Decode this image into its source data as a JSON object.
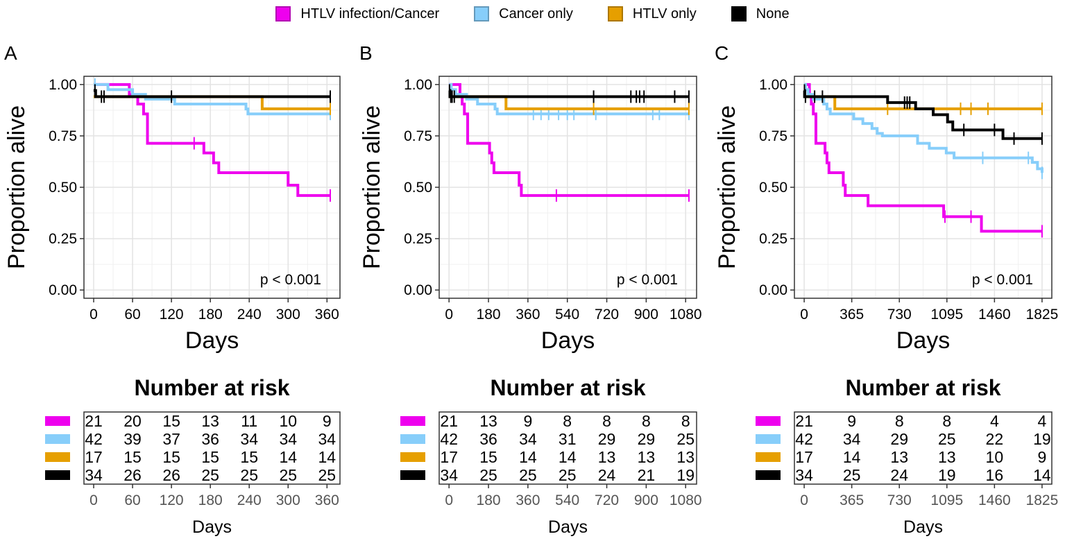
{
  "legend": [
    {
      "label": "HTLV infection/Cancer",
      "color": "#EE00EE"
    },
    {
      "label": "Cancer only",
      "color": "#87CEFA"
    },
    {
      "label": "HTLV only",
      "color": "#E69F00"
    },
    {
      "label": "None",
      "color": "#000000"
    }
  ],
  "chart_data": [
    {
      "type": "line",
      "panel_label": "A",
      "ylabel": "Proportion alive",
      "xlabel": "Days",
      "xlim": [
        0,
        365
      ],
      "ylim": [
        0,
        1
      ],
      "x_ticks": [
        "0",
        "60",
        "120",
        "180",
        "240",
        "300",
        "360"
      ],
      "y_ticks": [
        "0.00",
        "0.25",
        "0.50",
        "0.75",
        "1.00"
      ],
      "annotation": "p < 0.001",
      "series": [
        {
          "name": "HTLV infection/Cancer",
          "steps": [
            [
              0,
              1
            ],
            [
              55,
              0.95
            ],
            [
              68,
              0.905
            ],
            [
              77,
              0.857
            ],
            [
              83,
              0.714
            ],
            [
              160,
              0.714
            ],
            [
              170,
              0.667
            ],
            [
              185,
              0.619
            ],
            [
              193,
              0.571
            ],
            [
              295,
              0.571
            ],
            [
              300,
              0.51
            ],
            [
              315,
              0.46
            ],
            [
              365,
              0.46
            ]
          ],
          "censor": [
            [
              155,
              0.714
            ],
            [
              365,
              0.46
            ]
          ]
        },
        {
          "name": "Cancer only",
          "steps": [
            [
              0,
              1
            ],
            [
              22,
              0.975
            ],
            [
              60,
              0.952
            ],
            [
              80,
              0.929
            ],
            [
              125,
              0.905
            ],
            [
              235,
              0.881
            ],
            [
              238,
              0.857
            ],
            [
              365,
              0.857
            ]
          ],
          "censor": [
            [
              2,
              1
            ],
            [
              365,
              0.857
            ]
          ]
        },
        {
          "name": "HTLV only",
          "steps": [
            [
              0,
              0.941
            ],
            [
              258,
              0.941
            ],
            [
              260,
              0.882
            ],
            [
              365,
              0.882
            ]
          ],
          "censor": [
            [
              365,
              0.882
            ]
          ]
        },
        {
          "name": "None",
          "steps": [
            [
              0,
              0.971
            ],
            [
              3,
              0.941
            ],
            [
              365,
              0.941
            ]
          ],
          "censor": [
            [
              2,
              0.971
            ],
            [
              12,
              0.941
            ],
            [
              16,
              0.941
            ],
            [
              120,
              0.941
            ],
            [
              365,
              0.941
            ]
          ]
        }
      ],
      "risk_table": {
        "title": "Number at risk",
        "x_ticks": [
          "0",
          "60",
          "120",
          "180",
          "240",
          "300",
          "360"
        ],
        "xlabel": "Days",
        "rows": [
          [
            "21",
            "20",
            "15",
            "13",
            "11",
            "10",
            "9"
          ],
          [
            "42",
            "39",
            "37",
            "36",
            "34",
            "34",
            "34"
          ],
          [
            "17",
            "15",
            "15",
            "15",
            "15",
            "14",
            "14"
          ],
          [
            "34",
            "26",
            "26",
            "25",
            "25",
            "25",
            "25"
          ]
        ]
      }
    },
    {
      "type": "line",
      "panel_label": "B",
      "ylabel": "Proportion alive",
      "xlabel": "Days",
      "xlim": [
        0,
        1095
      ],
      "ylim": [
        0,
        1
      ],
      "x_ticks": [
        "0",
        "180",
        "360",
        "540",
        "720",
        "900",
        "1080"
      ],
      "y_ticks": [
        "0.00",
        "0.25",
        "0.50",
        "0.75",
        "1.00"
      ],
      "annotation": "p < 0.001",
      "series": [
        {
          "name": "HTLV infection/Cancer",
          "steps": [
            [
              0,
              1
            ],
            [
              50,
              0.95
            ],
            [
              60,
              0.905
            ],
            [
              70,
              0.857
            ],
            [
              85,
              0.714
            ],
            [
              175,
              0.714
            ],
            [
              185,
              0.667
            ],
            [
              195,
              0.619
            ],
            [
              205,
              0.571
            ],
            [
              310,
              0.571
            ],
            [
              320,
              0.51
            ],
            [
              330,
              0.46
            ],
            [
              1095,
              0.46
            ]
          ],
          "censor": [
            [
              490,
              0.46
            ],
            [
              1095,
              0.46
            ]
          ]
        },
        {
          "name": "Cancer only",
          "steps": [
            [
              0,
              1
            ],
            [
              10,
              0.975
            ],
            [
              30,
              0.952
            ],
            [
              80,
              0.929
            ],
            [
              130,
              0.905
            ],
            [
              210,
              0.881
            ],
            [
              220,
              0.857
            ],
            [
              1095,
              0.857
            ]
          ],
          "censor": [
            [
              385,
              0.857
            ],
            [
              420,
              0.857
            ],
            [
              455,
              0.857
            ],
            [
              500,
              0.857
            ],
            [
              540,
              0.857
            ],
            [
              570,
              0.857
            ],
            [
              670,
              0.857
            ],
            [
              930,
              0.857
            ],
            [
              960,
              0.857
            ],
            [
              1095,
              0.857
            ]
          ]
        },
        {
          "name": "HTLV only",
          "steps": [
            [
              0,
              0.941
            ],
            [
              255,
              0.941
            ],
            [
              260,
              0.882
            ],
            [
              1095,
              0.882
            ]
          ],
          "censor": [
            [
              660,
              0.882
            ],
            [
              1095,
              0.882
            ]
          ]
        },
        {
          "name": "None",
          "steps": [
            [
              0,
              0.971
            ],
            [
              4,
              0.941
            ],
            [
              1095,
              0.941
            ]
          ],
          "censor": [
            [
              2,
              0.971
            ],
            [
              8,
              0.941
            ],
            [
              14,
              0.941
            ],
            [
              24,
              0.941
            ],
            [
              660,
              0.941
            ],
            [
              830,
              0.941
            ],
            [
              855,
              0.941
            ],
            [
              870,
              0.941
            ],
            [
              890,
              0.941
            ],
            [
              1030,
              0.941
            ],
            [
              1095,
              0.941
            ]
          ]
        }
      ],
      "risk_table": {
        "title": "Number at risk",
        "x_ticks": [
          "0",
          "180",
          "360",
          "540",
          "720",
          "900",
          "1080"
        ],
        "xlabel": "Days",
        "rows": [
          [
            "21",
            "13",
            "9",
            "8",
            "8",
            "8",
            "8"
          ],
          [
            "42",
            "36",
            "34",
            "31",
            "29",
            "29",
            "25"
          ],
          [
            "17",
            "15",
            "14",
            "14",
            "13",
            "13",
            "13"
          ],
          [
            "34",
            "25",
            "25",
            "25",
            "24",
            "21",
            "19"
          ]
        ]
      }
    },
    {
      "type": "line",
      "panel_label": "C",
      "ylabel": "Proportion alive",
      "xlabel": "Days",
      "xlim": [
        0,
        1825
      ],
      "ylim": [
        0,
        1
      ],
      "x_ticks": [
        "0",
        "365",
        "730",
        "1095",
        "1460",
        "1825"
      ],
      "y_ticks": [
        "0.00",
        "0.25",
        "0.50",
        "0.75",
        "1.00"
      ],
      "annotation": "p < 0.001",
      "series": [
        {
          "name": "HTLV infection/Cancer",
          "steps": [
            [
              0,
              1
            ],
            [
              40,
              0.95
            ],
            [
              55,
              0.905
            ],
            [
              70,
              0.857
            ],
            [
              90,
              0.714
            ],
            [
              145,
              0.714
            ],
            [
              160,
              0.667
            ],
            [
              175,
              0.619
            ],
            [
              190,
              0.571
            ],
            [
              285,
              0.571
            ],
            [
              300,
              0.51
            ],
            [
              315,
              0.46
            ],
            [
              480,
              0.46
            ],
            [
              490,
              0.41
            ],
            [
              1060,
              0.41
            ],
            [
              1070,
              0.357
            ],
            [
              1350,
              0.357
            ],
            [
              1360,
              0.286
            ],
            [
              1825,
              0.286
            ]
          ],
          "censor": [
            [
              1080,
              0.357
            ],
            [
              1280,
              0.357
            ],
            [
              1825,
              0.286
            ]
          ]
        },
        {
          "name": "Cancer only",
          "steps": [
            [
              0,
              1
            ],
            [
              10,
              0.975
            ],
            [
              30,
              0.952
            ],
            [
              70,
              0.929
            ],
            [
              150,
              0.905
            ],
            [
              175,
              0.881
            ],
            [
              200,
              0.857
            ],
            [
              380,
              0.833
            ],
            [
              450,
              0.81
            ],
            [
              520,
              0.786
            ],
            [
              560,
              0.762
            ],
            [
              600,
              0.75
            ],
            [
              850,
              0.75
            ],
            [
              870,
              0.714
            ],
            [
              960,
              0.69
            ],
            [
              1090,
              0.667
            ],
            [
              1150,
              0.643
            ],
            [
              1190,
              0.643
            ],
            [
              1750,
              0.621
            ],
            [
              1790,
              0.59
            ],
            [
              1825,
              0.57
            ]
          ],
          "censor": [
            [
              1370,
              0.643
            ],
            [
              1720,
              0.643
            ],
            [
              1825,
              0.57
            ]
          ]
        },
        {
          "name": "HTLV only",
          "steps": [
            [
              0,
              0.941
            ],
            [
              220,
              0.941
            ],
            [
              235,
              0.882
            ],
            [
              1825,
              0.882
            ]
          ],
          "censor": [
            [
              640,
              0.882
            ],
            [
              1200,
              0.882
            ],
            [
              1280,
              0.882
            ],
            [
              1410,
              0.882
            ],
            [
              1825,
              0.882
            ]
          ]
        },
        {
          "name": "None",
          "steps": [
            [
              0,
              0.971
            ],
            [
              3,
              0.941
            ],
            [
              630,
              0.941
            ],
            [
              640,
              0.912
            ],
            [
              840,
              0.912
            ],
            [
              855,
              0.882
            ],
            [
              975,
              0.882
            ],
            [
              990,
              0.853
            ],
            [
              1090,
              0.853
            ],
            [
              1100,
              0.818
            ],
            [
              1140,
              0.779
            ],
            [
              1510,
              0.779
            ],
            [
              1525,
              0.737
            ],
            [
              1825,
              0.737
            ]
          ],
          "censor": [
            [
              2,
              0.971
            ],
            [
              10,
              0.941
            ],
            [
              80,
              0.941
            ],
            [
              140,
              0.941
            ],
            [
              770,
              0.912
            ],
            [
              790,
              0.912
            ],
            [
              810,
              0.912
            ],
            [
              1225,
              0.779
            ],
            [
              1460,
              0.779
            ],
            [
              1610,
              0.737
            ],
            [
              1825,
              0.737
            ]
          ]
        }
      ],
      "risk_table": {
        "title": "Number at risk",
        "x_ticks": [
          "0",
          "365",
          "730",
          "1095",
          "1460",
          "1825"
        ],
        "xlabel": "Days",
        "rows": [
          [
            "21",
            "9",
            "8",
            "8",
            "4",
            "4"
          ],
          [
            "42",
            "34",
            "29",
            "25",
            "22",
            "19"
          ],
          [
            "17",
            "14",
            "13",
            "13",
            "10",
            "9"
          ],
          [
            "34",
            "25",
            "24",
            "19",
            "16",
            "14"
          ]
        ]
      }
    }
  ]
}
